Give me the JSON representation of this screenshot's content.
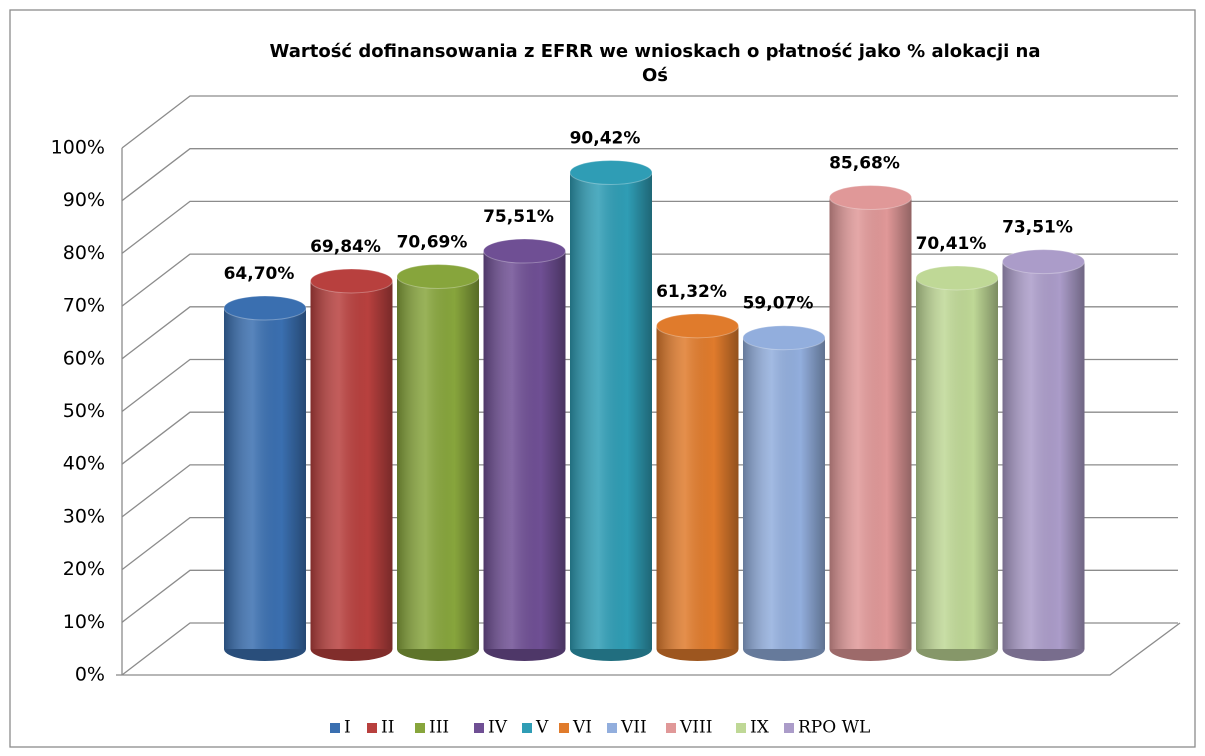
{
  "chart_data": {
    "type": "bar3d",
    "title": [
      "Wartość dofinansowania z EFRR we wnioskach o płatność jako % alokacji na",
      "Oś"
    ],
    "ylim": [
      0,
      100
    ],
    "yticks": [
      {
        "value": 0,
        "label": "0%"
      },
      {
        "value": 10,
        "label": "10%"
      },
      {
        "value": 20,
        "label": "20%"
      },
      {
        "value": 30,
        "label": "30%"
      },
      {
        "value": 40,
        "label": "40%"
      },
      {
        "value": 50,
        "label": "50%"
      },
      {
        "value": 60,
        "label": "60%"
      },
      {
        "value": 70,
        "label": "70%"
      },
      {
        "value": 80,
        "label": "80%"
      },
      {
        "value": 90,
        "label": "90%"
      },
      {
        "value": 100,
        "label": "100%"
      }
    ],
    "grid": true,
    "legend": "bottom",
    "series": [
      {
        "name": "I",
        "color": "#3a6fb0",
        "values": [
          64.7
        ],
        "value_labels": [
          "64,70%"
        ]
      },
      {
        "name": "II",
        "color": "#b8403e",
        "values": [
          69.84
        ],
        "value_labels": [
          "69,84%"
        ]
      },
      {
        "name": "III",
        "color": "#87a53c",
        "values": [
          70.69
        ],
        "value_labels": [
          "70,69%"
        ]
      },
      {
        "name": "IV",
        "color": "#6f4f94",
        "values": [
          75.51
        ],
        "value_labels": [
          "75,51%"
        ]
      },
      {
        "name": "V",
        "color": "#2f9db5",
        "values": [
          90.42
        ],
        "value_labels": [
          "90,42%"
        ]
      },
      {
        "name": "VI",
        "color": "#e07b2c",
        "values": [
          61.32
        ],
        "value_labels": [
          "61,32%"
        ]
      },
      {
        "name": "VII",
        "color": "#92aedd",
        "values": [
          59.07
        ],
        "value_labels": [
          "59,07%"
        ]
      },
      {
        "name": "VIII",
        "color": "#e09898",
        "values": [
          85.68
        ],
        "value_labels": [
          "85,68%"
        ]
      },
      {
        "name": "IX",
        "color": "#bfd896",
        "values": [
          70.41
        ],
        "value_labels": [
          "70,41%"
        ]
      },
      {
        "name": "RPO WL",
        "color": "#ab9cc9",
        "values": [
          73.51
        ],
        "value_labels": [
          "73,51%"
        ]
      }
    ]
  }
}
